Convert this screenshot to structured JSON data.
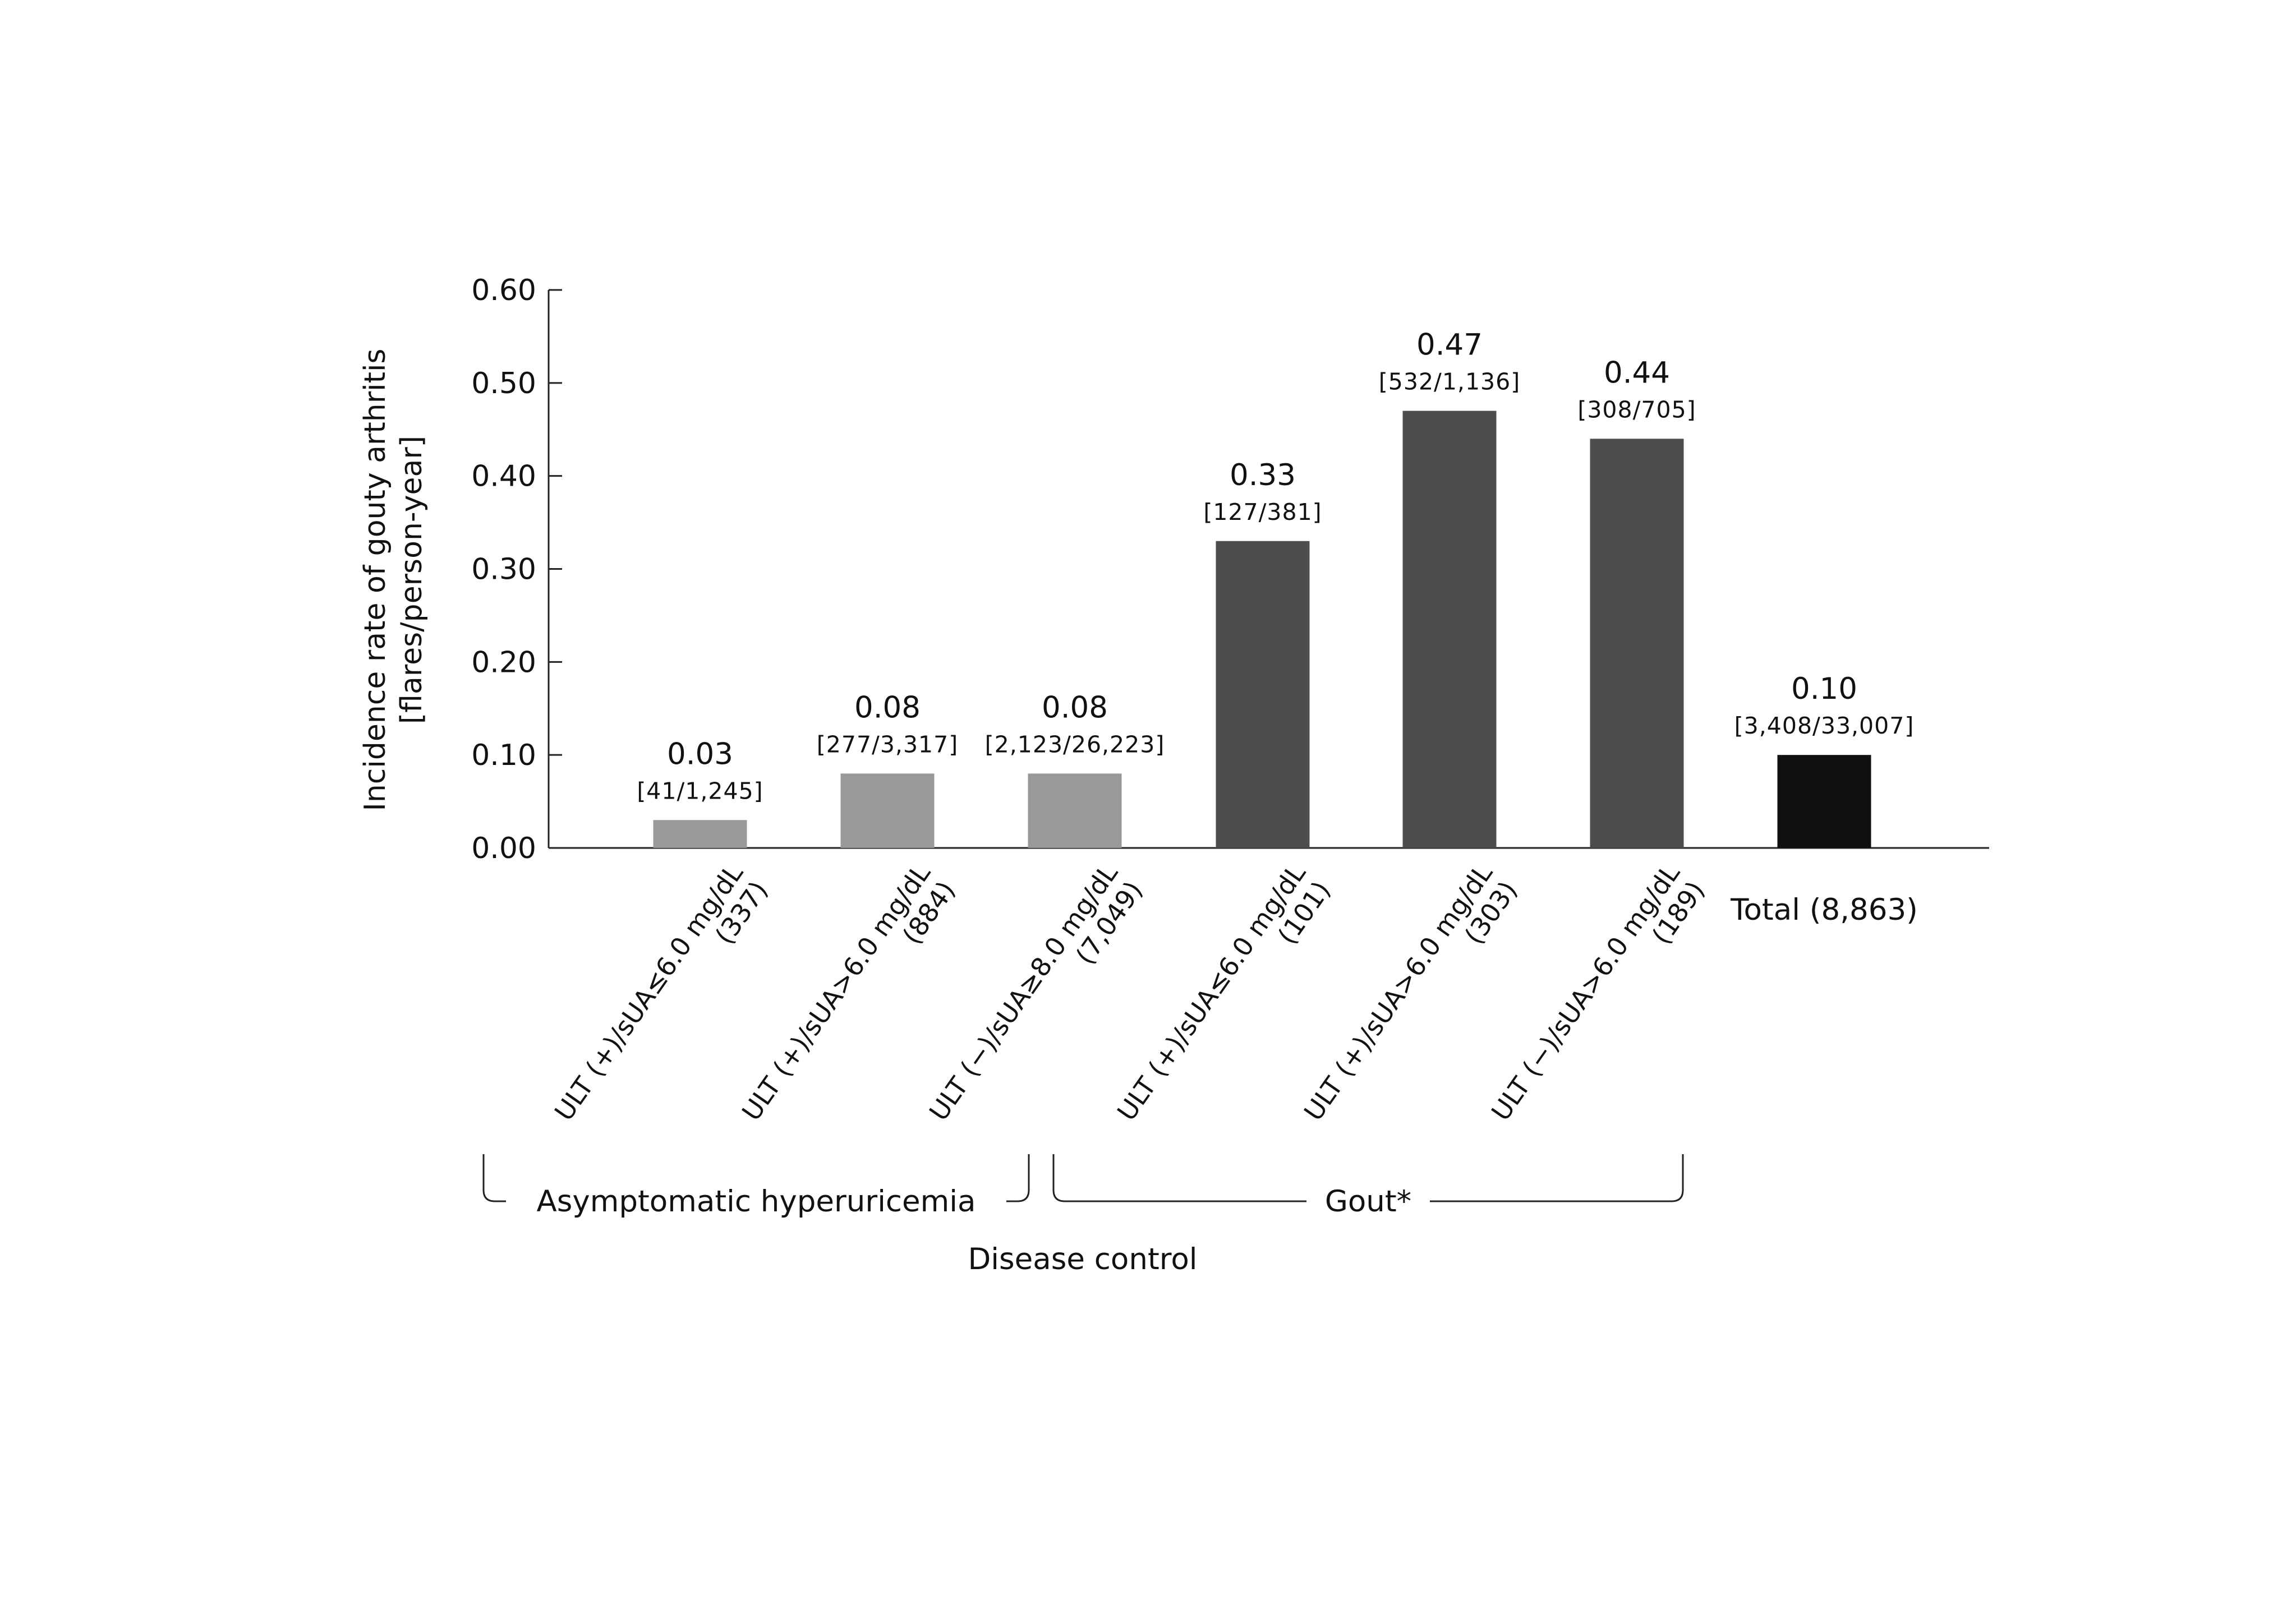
{
  "chart_data": {
    "type": "bar",
    "ylabel_lines": [
      "Incidence rate of gouty arthritis",
      "[flares/person-year]"
    ],
    "xlabel": "Disease control",
    "ylim": [
      0,
      0.6
    ],
    "yticks": [
      "0.00",
      "0.10",
      "0.20",
      "0.30",
      "0.40",
      "0.50",
      "0.60"
    ],
    "grid": false,
    "bars": [
      {
        "label_line1": "ULT (+)/sUA≤6.0 mg/dL",
        "label_line2": "(337)",
        "value": 0.03,
        "value_label": "0.03",
        "count_label": "[41/1,245]",
        "color": "#999999"
      },
      {
        "label_line1": "ULT (+)/sUA>6.0 mg/dL",
        "label_line2": "(884)",
        "value": 0.08,
        "value_label": "0.08",
        "count_label": "[277/3,317]",
        "color": "#999999"
      },
      {
        "label_line1": "ULT (−)/sUA≥8.0 mg/dL",
        "label_line2": "(7,049)",
        "value": 0.08,
        "value_label": "0.08",
        "count_label": "[2,123/26,223]",
        "color": "#999999"
      },
      {
        "label_line1": "ULT (+)/sUA≤6.0 mg/dL",
        "label_line2": "(101)",
        "value": 0.33,
        "value_label": "0.33",
        "count_label": "[127/381]",
        "color": "#4d4d4d"
      },
      {
        "label_line1": "ULT (+)/sUA>6.0 mg/dL",
        "label_line2": "(303)",
        "value": 0.47,
        "value_label": "0.47",
        "count_label": "[532/1,136]",
        "color": "#4d4d4d"
      },
      {
        "label_line1": "ULT (−)/sUA>6.0 mg/dL",
        "label_line2": "(189)",
        "value": 0.44,
        "value_label": "0.44",
        "count_label": "[308/705]",
        "color": "#4d4d4d"
      },
      {
        "label_flat": "Total (8,863)",
        "value": 0.1,
        "value_label": "0.10",
        "count_label": "[3,408/33,007]",
        "color": "#111111"
      }
    ],
    "groups": [
      {
        "label": "Asymptomatic hyperuricemia",
        "bar_indices": [
          0,
          1,
          2
        ]
      },
      {
        "label": "Gout*",
        "bar_indices": [
          3,
          4,
          5
        ]
      }
    ]
  }
}
